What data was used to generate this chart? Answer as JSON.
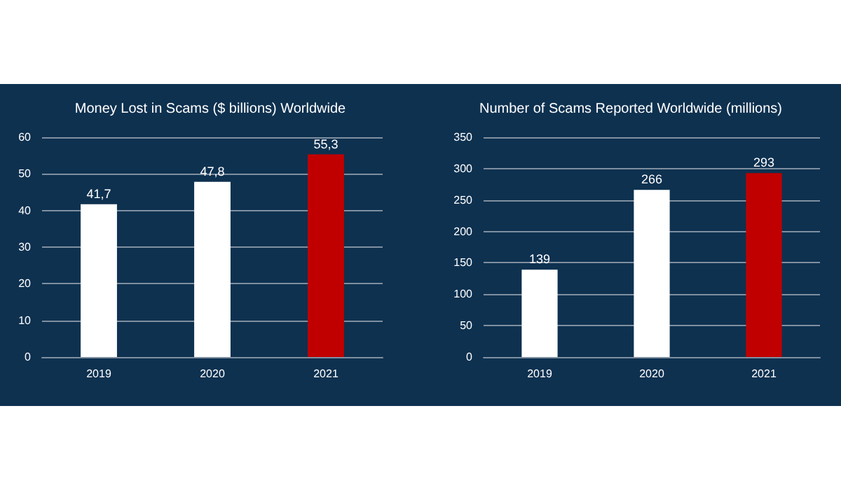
{
  "chart_data": [
    {
      "type": "bar",
      "title": "Money Lost in Scams ($ billions) Worldwide",
      "categories": [
        "2019",
        "2020",
        "2021"
      ],
      "values": [
        41.7,
        47.8,
        55.3
      ],
      "colors": [
        "#ffffff",
        "#ffffff",
        "#c00000"
      ],
      "value_labels": [
        "41,7",
        "47,8",
        "55,3"
      ],
      "ylim": [
        0,
        60
      ],
      "yticks": [
        0,
        10,
        20,
        30,
        40,
        50,
        60
      ],
      "grid": "y"
    },
    {
      "type": "bar",
      "title": "Number of Scams Reported Worldwide (millions)",
      "categories": [
        "2019",
        "2020",
        "2021"
      ],
      "values": [
        139,
        266,
        293
      ],
      "colors": [
        "#ffffff",
        "#ffffff",
        "#c00000"
      ],
      "data_labels": true,
      "ylim": [
        0,
        350
      ],
      "yticks": [
        0,
        50,
        100,
        150,
        200,
        250,
        300,
        350
      ],
      "grid": "y"
    }
  ]
}
